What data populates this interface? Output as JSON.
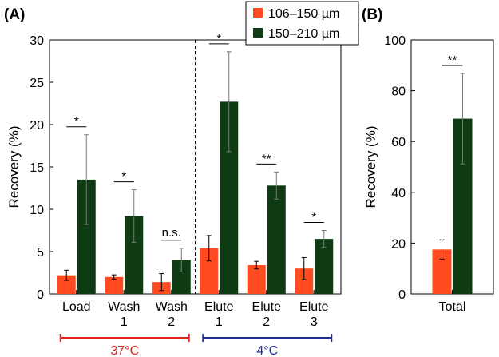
{
  "colors": {
    "series_a": "#ff4b1f",
    "series_b": "#0e3b12",
    "temp_warm": "#e0231c",
    "temp_cold": "#1f2f8f",
    "axis": "#000000"
  },
  "chart_data": [
    {
      "type": "bar",
      "panel_label": "(A)",
      "title": "",
      "xlabel": "",
      "ylabel": "Recovery (%)",
      "ylim": [
        0,
        30
      ],
      "yticks": [
        "0",
        "5",
        "10",
        "15",
        "20",
        "25",
        "30"
      ],
      "categories": [
        {
          "line1": "Load",
          "line2": ""
        },
        {
          "line1": "Wash",
          "line2": "1"
        },
        {
          "line1": "Wash",
          "line2": "2"
        },
        {
          "line1": "Elute",
          "line2": "1"
        },
        {
          "line1": "Elute",
          "line2": "2"
        },
        {
          "line1": "Elute",
          "line2": "3"
        }
      ],
      "series": [
        {
          "name": "106–150 µm",
          "values": [
            2.2,
            2.0,
            1.4,
            5.4,
            3.4,
            3.0
          ],
          "errors": [
            0.6,
            0.25,
            1.0,
            1.5,
            0.45,
            1.3
          ]
        },
        {
          "name": "150–210 µm",
          "values": [
            13.5,
            9.2,
            4.0,
            22.7,
            12.8,
            6.5
          ],
          "errors": [
            5.3,
            3.1,
            1.4,
            5.9,
            1.6,
            1.0
          ]
        }
      ],
      "significance": [
        "*",
        "*",
        "n.s.",
        "*",
        "**",
        "*"
      ],
      "divider_after_category": 2,
      "temperature_groups": [
        {
          "label": "37°C",
          "from": 0,
          "to": 2
        },
        {
          "label": "4°C",
          "from": 3,
          "to": 5
        }
      ],
      "legend_position": "top-right"
    },
    {
      "type": "bar",
      "panel_label": "(B)",
      "title": "",
      "xlabel": "",
      "ylabel": "Recovery (%)",
      "ylim": [
        0,
        100
      ],
      "yticks": [
        "0",
        "20",
        "40",
        "60",
        "80",
        "100"
      ],
      "categories": [
        {
          "line1": "Total",
          "line2": ""
        }
      ],
      "series": [
        {
          "name": "106–150 µm",
          "values": [
            17.5
          ],
          "errors": [
            3.8
          ]
        },
        {
          "name": "150–210 µm",
          "values": [
            69.0
          ],
          "errors": [
            17.8
          ]
        }
      ],
      "significance": [
        "**"
      ]
    }
  ]
}
